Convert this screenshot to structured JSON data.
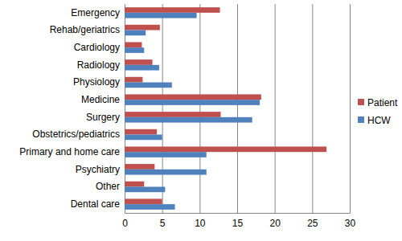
{
  "chart_data": {
    "type": "bar",
    "orientation": "horizontal",
    "categories": [
      "Emergency",
      "Rehab/geriatrics",
      "Cardiology",
      "Radiology",
      "Physiology",
      "Medicine",
      "Surgery",
      "Obstetrics/pediatrics",
      "Primary and home care",
      "Psychiatry",
      "Other",
      "Dental care"
    ],
    "series": [
      {
        "name": "Patient",
        "color": "#c0504d",
        "values": [
          12.7,
          4.7,
          2.3,
          3.7,
          2.4,
          18.2,
          12.8,
          4.3,
          26.9,
          4.0,
          2.6,
          5.0
        ]
      },
      {
        "name": "HCW",
        "color": "#4f81bd",
        "values": [
          9.6,
          2.8,
          2.6,
          4.6,
          6.3,
          18.0,
          17.0,
          5.0,
          10.9,
          10.9,
          5.4,
          6.7
        ]
      }
    ],
    "xlim": [
      0,
      30
    ],
    "xticks": [
      0,
      5,
      10,
      15,
      20,
      25,
      30
    ],
    "grid": true,
    "legend": "right"
  }
}
